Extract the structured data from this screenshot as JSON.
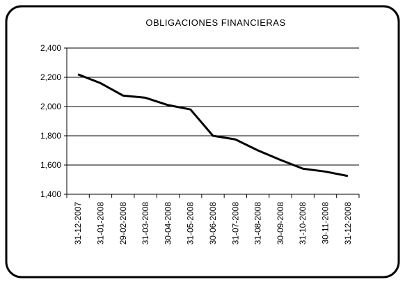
{
  "chart_data": {
    "type": "line",
    "title": "OBLIGACIONES FINANCIERAS",
    "categories": [
      "31-12-2007",
      "31-01-2008",
      "29-02-2008",
      "31-03-2008",
      "30-04-2008",
      "31-05-2008",
      "30-06-2008",
      "31-07-2008",
      "31-08-2008",
      "30-09-2008",
      "31-10-2008",
      "30-11-2008",
      "31-12-2008"
    ],
    "values": [
      2220,
      2160,
      2075,
      2060,
      2010,
      1980,
      1800,
      1775,
      1700,
      1635,
      1575,
      1555,
      1525
    ],
    "color": "#000000",
    "ylim": [
      1400,
      2400
    ],
    "yticks": [
      {
        "value": 1400,
        "label": "1,400"
      },
      {
        "value": 1600,
        "label": "1,600"
      },
      {
        "value": 1800,
        "label": "1,800"
      },
      {
        "value": 2000,
        "label": "2,000"
      },
      {
        "value": 2200,
        "label": "2,200"
      },
      {
        "value": 2400,
        "label": "2,400"
      }
    ],
    "grid": true
  }
}
